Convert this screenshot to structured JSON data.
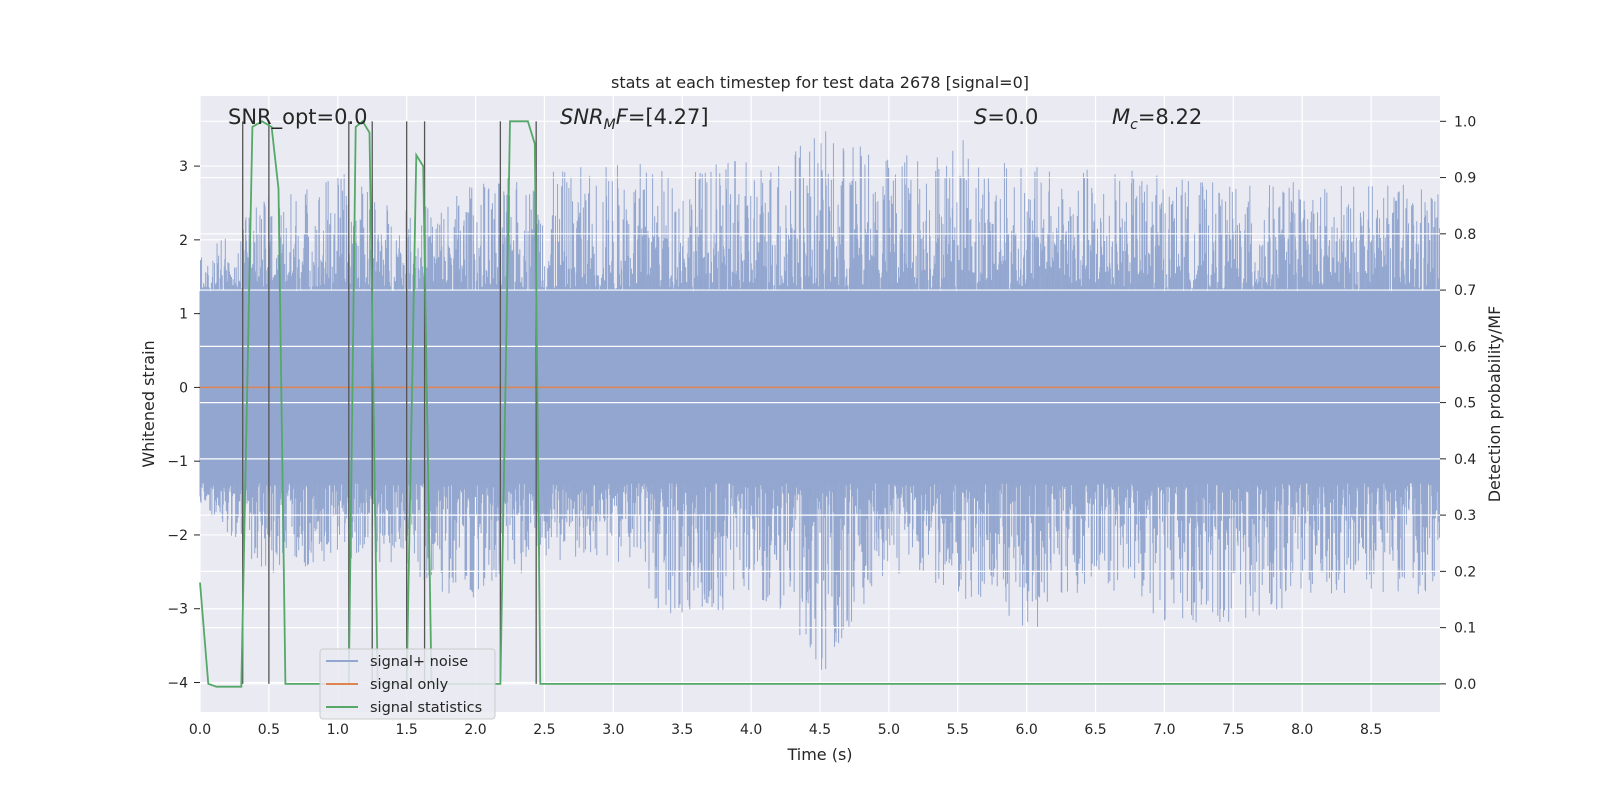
{
  "chart_data": {
    "type": "line",
    "title": "stats at each timestep for test data 2678 [signal=0]",
    "xlabel": "Time (s)",
    "ylabel_left": "Whitened strain",
    "ylabel_right": "Detection probability/MF",
    "xlim": [
      0,
      9.0
    ],
    "ylim_left": [
      -4.4,
      3.95
    ],
    "ylim_right": [
      -0.05,
      1.045
    ],
    "grid": true,
    "legend_position": "lower-left",
    "x_ticks": [
      0.0,
      0.5,
      1.0,
      1.5,
      2.0,
      2.5,
      3.0,
      3.5,
      4.0,
      4.5,
      5.0,
      5.5,
      6.0,
      6.5,
      7.0,
      7.5,
      8.0,
      8.5
    ],
    "x_tick_labels": [
      "0.0",
      "0.5",
      "1.0",
      "1.5",
      "2.0",
      "2.5",
      "3.0",
      "3.5",
      "4.0",
      "4.5",
      "5.0",
      "5.5",
      "6.0",
      "6.5",
      "7.0",
      "7.5",
      "8.0",
      "8.5"
    ],
    "y_left_ticks": [
      -4,
      -3,
      -2,
      -1,
      0,
      1,
      2,
      3
    ],
    "y_left_tick_labels": [
      "−4",
      "−3",
      "−2",
      "−1",
      "0",
      "1",
      "2",
      "3"
    ],
    "y_right_ticks": [
      0.0,
      0.1,
      0.2,
      0.3,
      0.4,
      0.5,
      0.6,
      0.7,
      0.8,
      0.9,
      1.0
    ],
    "y_right_tick_labels": [
      "0.0",
      "0.1",
      "0.2",
      "0.3",
      "0.4",
      "0.5",
      "0.6",
      "0.7",
      "0.8",
      "0.9",
      "1.0"
    ],
    "annotations": [
      {
        "id": "snr-opt",
        "text": "SNR_opt=0.0",
        "x": 0.2
      },
      {
        "id": "snr-mf",
        "text": "SNR_MF=[4.27]",
        "x": 2.6
      },
      {
        "id": "s-value",
        "text": "S=0.0",
        "x": 5.6
      },
      {
        "id": "mc-value",
        "text": "M_c=8.22",
        "x": 6.6
      }
    ],
    "vertical_markers": [
      0.31,
      0.5,
      1.08,
      1.25,
      1.5,
      1.63,
      2.18,
      2.44
    ],
    "series": [
      {
        "name": "signal+ noise",
        "color": "#92a6cf",
        "x_range": [
          0,
          9.0
        ],
        "band_envelope": {
          "x": [
            0.0,
            0.5,
            1.0,
            1.5,
            2.0,
            2.5,
            3.0,
            3.5,
            4.0,
            4.5,
            5.0,
            5.5,
            6.0,
            6.5,
            7.0,
            7.5,
            8.0,
            8.5,
            9.0
          ],
          "upper": [
            1.75,
            2.6,
            2.95,
            2.4,
            2.8,
            2.9,
            3.1,
            3.0,
            3.1,
            3.5,
            3.2,
            3.4,
            3.0,
            3.0,
            2.9,
            2.75,
            2.8,
            2.75,
            2.8
          ],
          "lower": [
            -1.6,
            -2.6,
            -2.3,
            -2.5,
            -3.1,
            -2.4,
            -2.3,
            -3.4,
            -2.8,
            -4.0,
            -2.5,
            -2.9,
            -3.4,
            -2.6,
            -3.2,
            -3.2,
            -3.0,
            -2.8,
            -2.8
          ]
        }
      },
      {
        "name": "signal only",
        "color": "#dd8452",
        "x": [
          0,
          9.0
        ],
        "y": [
          0,
          0
        ]
      },
      {
        "name": "signal statistics",
        "color": "#55a868",
        "axis": "right",
        "x": [
          0.0,
          0.06,
          0.12,
          0.2,
          0.3,
          0.38,
          0.45,
          0.52,
          0.57,
          0.62,
          0.7,
          0.8,
          0.9,
          1.02,
          1.08,
          1.13,
          1.18,
          1.23,
          1.29,
          1.35,
          1.45,
          1.5,
          1.57,
          1.62,
          1.68,
          1.75,
          1.85,
          2.0,
          2.12,
          2.18,
          2.25,
          2.3,
          2.38,
          2.43,
          2.47,
          2.52,
          2.6,
          3.0,
          4.0,
          5.0,
          6.0,
          7.0,
          8.0,
          9.0
        ],
        "y": [
          0.18,
          0.0,
          -0.005,
          -0.005,
          -0.005,
          0.99,
          1.0,
          0.99,
          0.88,
          0.0,
          0.0,
          0.0,
          0.0,
          0.0,
          0.0,
          0.99,
          1.0,
          0.98,
          0.0,
          0.0,
          0.0,
          0.0,
          0.94,
          0.92,
          0.0,
          0.0,
          0.0,
          0.0,
          0.0,
          0.0,
          1.0,
          1.0,
          1.0,
          0.96,
          0.0,
          0.0,
          0.0,
          0.0,
          0.0,
          0.0,
          0.0,
          0.0,
          0.0,
          0.0
        ]
      }
    ],
    "legend_entries": [
      {
        "label": "signal+ noise",
        "color": "#92a6cf"
      },
      {
        "label": "signal only",
        "color": "#dd8452"
      },
      {
        "label": "signal statistics",
        "color": "#55a868"
      }
    ]
  }
}
